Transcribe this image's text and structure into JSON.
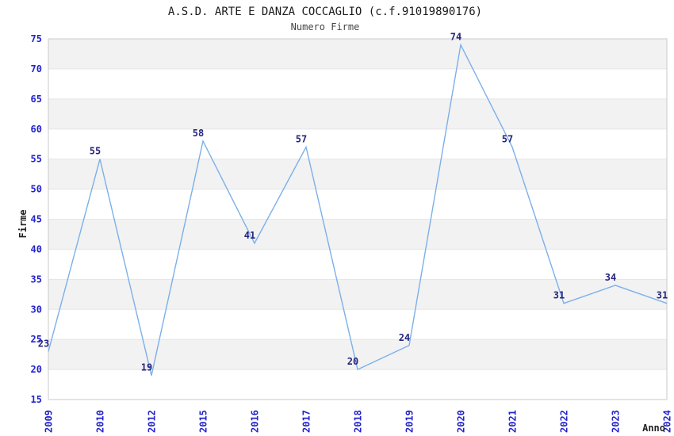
{
  "header": {
    "title": "A.S.D. ARTE E DANZA COCCAGLIO (c.f.91019890176)",
    "subtitle": "Numero Firme"
  },
  "chart_data": {
    "type": "line",
    "title": "A.S.D. ARTE E DANZA COCCAGLIO (c.f.91019890176)",
    "subtitle": "Numero Firme",
    "categories": [
      "2009",
      "2010",
      "2012",
      "2015",
      "2016",
      "2017",
      "2018",
      "2019",
      "2020",
      "2021",
      "2022",
      "2023",
      "2024"
    ],
    "values": [
      23,
      55,
      19,
      58,
      41,
      57,
      20,
      24,
      74,
      57,
      31,
      34,
      31
    ],
    "xlabel": "Anno",
    "ylabel": "Firme",
    "ylim": [
      15,
      75
    ],
    "ytick_step": 5,
    "yticks": [
      15,
      20,
      25,
      30,
      35,
      40,
      45,
      50,
      55,
      60,
      65,
      70,
      75
    ],
    "grid": "horizontal-bands-alternating",
    "legend": "none",
    "colors": {
      "line": "#7cb0e9",
      "tick_label": "#2323cc",
      "point_label": "#26267d",
      "band_fill": "#f2f2f2",
      "grid_line": "#e5e5e5",
      "plot_border": "#d2d2d2",
      "title_text": "#1a1a1a",
      "axis_title_text": "#222222",
      "background": "#ffffff"
    }
  }
}
